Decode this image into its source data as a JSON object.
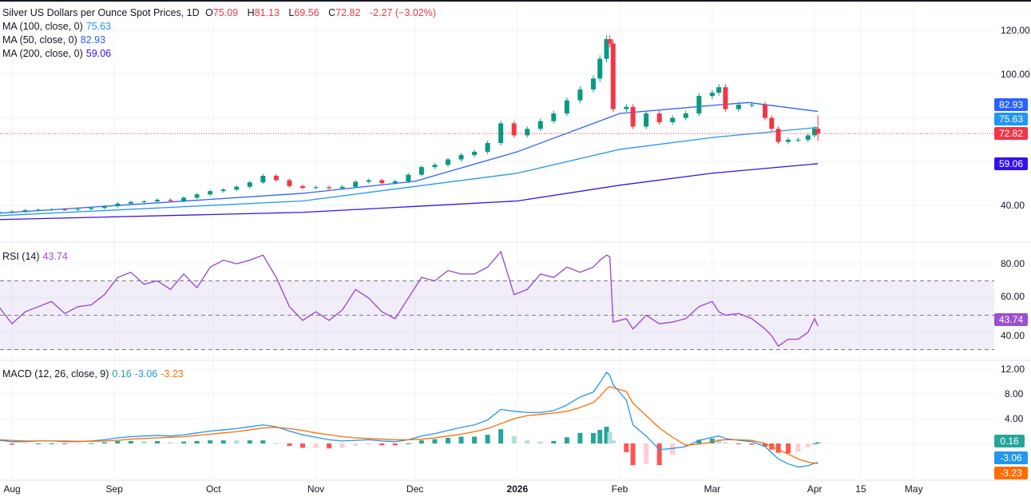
{
  "header": {
    "title": "Silver US Dollars per Ounce Spot Prices, 1D",
    "o_label": "O",
    "o": "75.09",
    "h_label": "H",
    "h": "81.13",
    "l_label": "L",
    "l": "69.56",
    "c_label": "C",
    "c": "72.82",
    "change": "-2.27 (−3.02%)"
  },
  "ma": [
    {
      "label": "MA (100, close, 0)",
      "value": "75.63",
      "color": "#2196f3"
    },
    {
      "label": "MA (50, close, 0)",
      "value": "82.93",
      "color": "#2962ff"
    },
    {
      "label": "MA (200, close, 0)",
      "value": "59.06",
      "color": "#3311ee"
    }
  ],
  "rsi_header": {
    "label": "RSI (14)",
    "value": "43.74"
  },
  "macd_header": {
    "label": "MACD (12, 26, close, 9)",
    "hist": "0.16",
    "macd": "-3.06",
    "signal": "-3.23"
  },
  "price_axis": [
    "120.00",
    "100.00",
    "40.00"
  ],
  "rsi_axis": [
    "80.00",
    "60.00",
    "40.00"
  ],
  "macd_axis": [
    "12.00",
    "8.00",
    "4.00"
  ],
  "badges": {
    "ma50": "82.93",
    "ma100": "75.63",
    "last": "72.82",
    "ma200": "59.06",
    "rsi": "43.74",
    "hist": "0.16",
    "macd": "-3.06",
    "signal": "-3.23"
  },
  "time_axis": [
    {
      "label": "Aug",
      "d": "2025-08-01"
    },
    {
      "label": "Sep",
      "d": "2025-09-01"
    },
    {
      "label": "Oct",
      "d": "2025-10-01"
    },
    {
      "label": "Nov",
      "d": "2025-11-01"
    },
    {
      "label": "Dec",
      "d": "2025-12-01"
    },
    {
      "label": "2026",
      "d": "2026-01-01"
    },
    {
      "label": "Feb",
      "d": "2026-02-01"
    },
    {
      "label": "Mar",
      "d": "2026-03-01"
    },
    {
      "label": "Apr",
      "d": "2026-04-01"
    },
    {
      "label": "15",
      "d": "2026-04-15"
    },
    {
      "label": "May",
      "d": "2026-05-01"
    }
  ],
  "colors": {
    "up": "#089981",
    "down": "#f23645",
    "ma100": "#2196f3",
    "ma50": "#2962ff",
    "ma200": "#3311ee",
    "rsi": "#9c4fd0",
    "macd": "#2196f3",
    "signal": "#ff6d00"
  },
  "chart_data": {
    "type": "candlestick",
    "title": "Silver US Dollars per Ounce Spot Prices, 1D",
    "price_range": [
      25,
      125
    ],
    "last_bar": {
      "o": 75.09,
      "h": 81.13,
      "l": 69.56,
      "c": 72.82
    },
    "bars": [
      [
        "2025-07-28",
        37.0,
        55,
        0.5,
        0.6
      ],
      [
        "2025-08-01",
        37.2,
        45,
        0.3,
        0.5
      ],
      [
        "2025-08-05",
        37.8,
        52,
        0.3,
        0.4
      ],
      [
        "2025-08-09",
        38.0,
        55,
        0.4,
        0.4
      ],
      [
        "2025-08-13",
        38.1,
        58,
        0.4,
        0.4
      ],
      [
        "2025-08-17",
        38.0,
        51,
        0.3,
        0.4
      ],
      [
        "2025-08-21",
        38.3,
        55,
        0.3,
        0.35
      ],
      [
        "2025-08-25",
        38.8,
        56,
        0.4,
        0.35
      ],
      [
        "2025-08-29",
        39.6,
        62,
        0.6,
        0.4
      ],
      [
        "2025-09-02",
        40.8,
        72,
        0.9,
        0.5
      ],
      [
        "2025-09-06",
        41.5,
        75,
        1.1,
        0.7
      ],
      [
        "2025-09-10",
        41.8,
        68,
        1.2,
        0.8
      ],
      [
        "2025-09-14",
        42.5,
        70,
        1.3,
        0.9
      ],
      [
        "2025-09-18",
        42.0,
        65,
        1.2,
        1.0
      ],
      [
        "2025-09-22",
        43.5,
        74,
        1.4,
        1.1
      ],
      [
        "2025-09-26",
        45.0,
        66,
        1.7,
        1.3
      ],
      [
        "2025-09-30",
        46.5,
        78,
        2.0,
        1.5
      ],
      [
        "2025-10-04",
        47.2,
        82,
        2.2,
        1.7
      ],
      [
        "2025-10-08",
        48.5,
        80,
        2.4,
        1.9
      ],
      [
        "2025-10-12",
        50.5,
        82,
        2.7,
        2.2
      ],
      [
        "2025-10-16",
        53.5,
        85,
        3.0,
        2.5
      ],
      [
        "2025-10-20",
        51.5,
        72,
        2.7,
        2.6
      ],
      [
        "2025-10-24",
        48.8,
        55,
        2.0,
        2.4
      ],
      [
        "2025-10-28",
        48.0,
        47,
        1.4,
        2.1
      ],
      [
        "2025-11-01",
        48.3,
        52,
        1.0,
        1.7
      ],
      [
        "2025-11-05",
        47.8,
        47,
        0.6,
        1.4
      ],
      [
        "2025-11-09",
        48.5,
        53,
        0.4,
        1.1
      ],
      [
        "2025-11-13",
        50.8,
        65,
        0.5,
        0.9
      ],
      [
        "2025-11-17",
        51.5,
        60,
        0.6,
        0.8
      ],
      [
        "2025-11-21",
        50.2,
        52,
        0.4,
        0.7
      ],
      [
        "2025-11-25",
        51.0,
        48,
        0.3,
        0.6
      ],
      [
        "2025-11-29",
        54.0,
        60,
        0.6,
        0.6
      ],
      [
        "2025-12-03",
        57.5,
        72,
        1.2,
        0.7
      ],
      [
        "2025-12-07",
        58.5,
        70,
        1.6,
        0.9
      ],
      [
        "2025-12-11",
        61.0,
        76,
        2.1,
        1.2
      ],
      [
        "2025-12-15",
        63.0,
        74,
        2.6,
        1.5
      ],
      [
        "2025-12-19",
        64.5,
        74,
        3.0,
        1.9
      ],
      [
        "2025-12-23",
        68.5,
        78,
        3.8,
        2.4
      ],
      [
        "2025-12-27",
        77.5,
        87,
        5.5,
        3.2
      ],
      [
        "2025-12-31",
        72.0,
        62,
        5.2,
        4.0
      ],
      [
        "2026-01-04",
        75.0,
        65,
        5.0,
        4.5
      ],
      [
        "2026-01-08",
        78.5,
        74,
        5.0,
        4.7
      ],
      [
        "2026-01-12",
        82.0,
        72,
        5.3,
        4.9
      ],
      [
        "2026-01-16",
        88.0,
        78,
        6.2,
        5.2
      ],
      [
        "2026-01-20",
        93.0,
        75,
        7.5,
        5.8
      ],
      [
        "2026-01-24",
        98.0,
        78,
        8.3,
        6.6
      ],
      [
        "2026-01-26",
        107.0,
        82,
        9.8,
        7.6
      ],
      [
        "2026-01-28",
        116.0,
        85,
        11.5,
        8.8
      ],
      [
        "2026-01-29",
        114.0,
        84,
        11.0,
        9.2
      ],
      [
        "2026-01-30",
        84.0,
        46,
        9.5,
        9.0
      ],
      [
        "2026-02-03",
        85.0,
        48,
        7.0,
        8.4
      ],
      [
        "2026-02-05",
        76.0,
        42,
        3.0,
        6.5
      ],
      [
        "2026-02-09",
        82.0,
        50,
        1.2,
        4.5
      ],
      [
        "2026-02-13",
        78.0,
        45,
        -1.0,
        2.5
      ],
      [
        "2026-02-17",
        80.0,
        46,
        -0.8,
        1.0
      ],
      [
        "2026-02-21",
        82.0,
        48,
        -0.5,
        -0.3
      ],
      [
        "2026-02-25",
        90.0,
        55,
        0.5,
        -0.1
      ],
      [
        "2026-03-01",
        91.5,
        58,
        1.0,
        0.2
      ],
      [
        "2026-03-03",
        94.0,
        52,
        1.2,
        0.5
      ],
      [
        "2026-03-05",
        84.0,
        50,
        0.8,
        0.6
      ],
      [
        "2026-03-09",
        86.0,
        51,
        0.5,
        0.6
      ],
      [
        "2026-03-13",
        86.0,
        48,
        0.3,
        0.5
      ],
      [
        "2026-03-17",
        80.0,
        42,
        -0.5,
        0.0
      ],
      [
        "2026-03-19",
        75.0,
        38,
        -1.5,
        -0.5
      ],
      [
        "2026-03-21",
        69.0,
        32,
        -2.5,
        -1.0
      ],
      [
        "2026-03-24",
        70.0,
        36,
        -3.3,
        -1.7
      ],
      [
        "2026-03-27",
        70.0,
        36,
        -3.8,
        -2.5
      ],
      [
        "2026-03-30",
        72.0,
        40,
        -3.6,
        -3.0
      ],
      [
        "2026-04-01",
        75.09,
        48,
        -3.2,
        -3.2
      ],
      [
        "2026-04-02",
        72.82,
        43.74,
        -3.06,
        -3.23
      ]
    ],
    "bar_fields": [
      "date",
      "close",
      "rsi",
      "macd",
      "signal"
    ],
    "ma50": [
      [
        "2025-07-28",
        36.4
      ],
      [
        "2025-10-28",
        45.5
      ],
      [
        "2025-12-01",
        51
      ],
      [
        "2026-01-01",
        64.5
      ],
      [
        "2026-02-01",
        82
      ],
      [
        "2026-03-01",
        85.7
      ],
      [
        "2026-03-12",
        87
      ],
      [
        "2026-04-02",
        82.93
      ]
    ],
    "ma100": [
      [
        "2025-07-28",
        35.3
      ],
      [
        "2025-10-28",
        42
      ],
      [
        "2026-01-01",
        54.7
      ],
      [
        "2026-02-01",
        65.6
      ],
      [
        "2026-03-01",
        71
      ],
      [
        "2026-04-02",
        75.63
      ]
    ],
    "ma200": [
      [
        "2025-07-28",
        33.5
      ],
      [
        "2025-10-28",
        36.8
      ],
      [
        "2026-01-01",
        42
      ],
      [
        "2026-02-01",
        49.2
      ],
      [
        "2026-03-01",
        54.7
      ],
      [
        "2026-04-02",
        59.06
      ]
    ],
    "rsi_levels": [
      70,
      50,
      30
    ],
    "rsi_range": [
      20,
      95
    ],
    "macd_range": [
      -5,
      13
    ]
  }
}
